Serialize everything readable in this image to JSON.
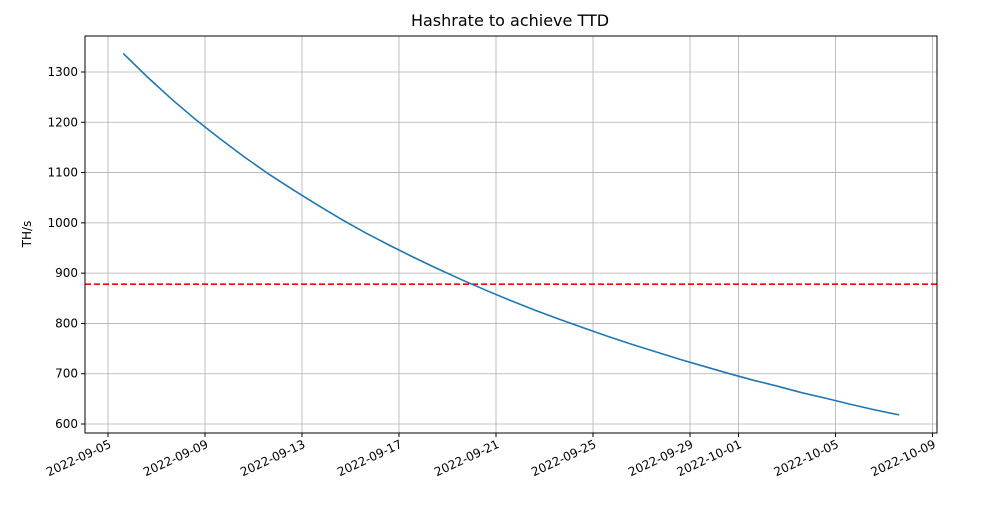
{
  "chart_data": {
    "type": "line",
    "title": "Hashrate to achieve TTD",
    "xlabel": "",
    "ylabel": "TH/s",
    "ylim": [
      585,
      1372
    ],
    "xlim": [
      "2022-09-04 01:00",
      "2022-10-09 04:00"
    ],
    "grid": true,
    "x_tick_labels": [
      "2022-09-05",
      "2022-09-09",
      "2022-09-13",
      "2022-09-17",
      "2022-09-21",
      "2022-09-25",
      "2022-09-29",
      "2022-10-01",
      "2022-10-05",
      "2022-10-09"
    ],
    "y_ticks": [
      600,
      700,
      800,
      900,
      1000,
      1100,
      1200,
      1300
    ],
    "series": [
      {
        "color": "#1f77b4",
        "x": [
          "2022-09-05 15:00",
          "2022-09-06 15:00",
          "2022-09-07 15:00",
          "2022-09-08 15:00",
          "2022-09-09 15:00",
          "2022-09-10 15:00",
          "2022-09-11 15:00",
          "2022-09-12 15:00",
          "2022-09-13 15:00",
          "2022-09-14 15:00",
          "2022-09-15 15:00",
          "2022-09-16 15:00",
          "2022-09-17 15:00",
          "2022-09-18 15:00",
          "2022-09-19 15:00",
          "2022-09-20 15:00",
          "2022-09-21 15:00",
          "2022-09-22 15:00",
          "2022-09-23 15:00",
          "2022-09-24 15:00",
          "2022-09-25 15:00",
          "2022-09-26 15:00",
          "2022-09-27 15:00",
          "2022-09-28 15:00",
          "2022-09-29 15:00",
          "2022-09-30 15:00",
          "2022-10-01 15:00",
          "2022-10-02 15:00",
          "2022-10-03 15:00",
          "2022-10-04 15:00",
          "2022-10-05 15:00",
          "2022-10-06 15:00",
          "2022-10-07 15:00"
        ],
        "values": [
          1337,
          1290,
          1246,
          1205,
          1167,
          1131,
          1097,
          1066,
          1036,
          1007,
          980,
          955,
          931,
          908,
          886,
          865,
          845,
          826,
          808,
          791,
          774,
          758,
          743,
          728,
          714,
          700,
          687,
          675,
          662,
          651,
          639,
          628,
          618
        ]
      }
    ],
    "reference_line": {
      "orientation": "horizontal",
      "value": 878,
      "color": "#ff0000",
      "style": "dashed"
    }
  }
}
